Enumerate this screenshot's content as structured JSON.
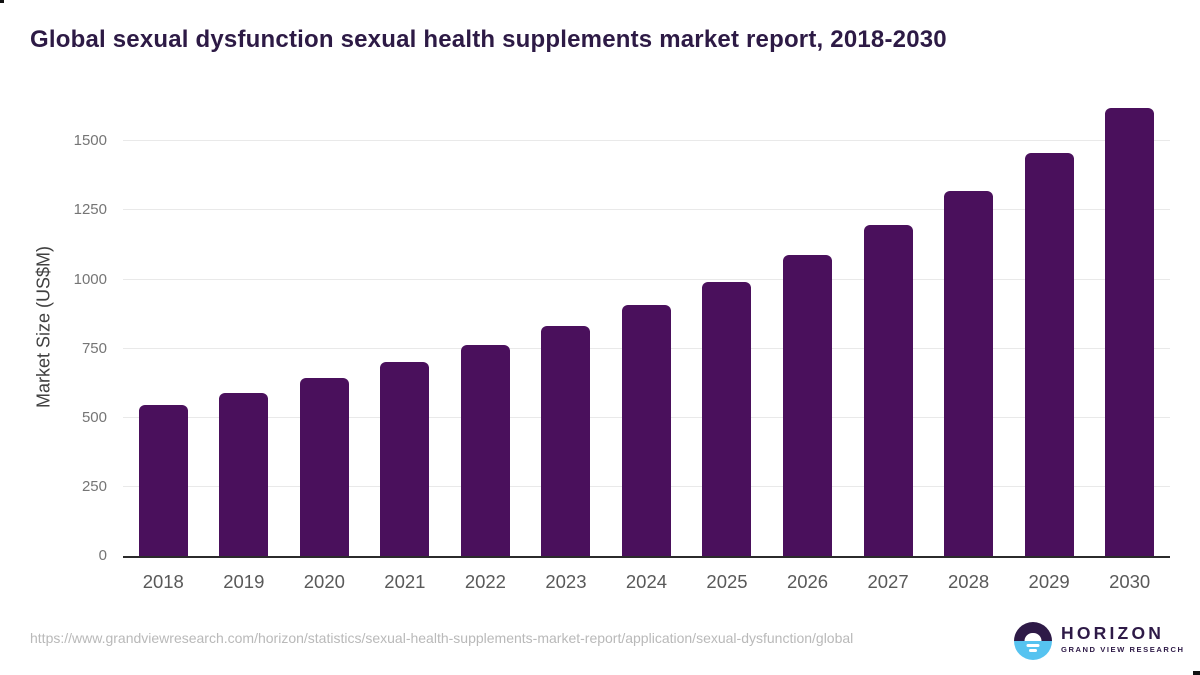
{
  "page": {
    "title": "Global sexual dysfunction sexual health supplements market report, 2018-2030"
  },
  "chart_data": {
    "type": "bar",
    "title": "Global sexual dysfunction sexual health supplements market report, 2018-2030",
    "categories": [
      "2018",
      "2019",
      "2020",
      "2021",
      "2022",
      "2023",
      "2024",
      "2025",
      "2026",
      "2027",
      "2028",
      "2029",
      "2030"
    ],
    "values": [
      546,
      589,
      643,
      701,
      762,
      833,
      908,
      991,
      1090,
      1199,
      1320,
      1459,
      1620
    ],
    "xlabel": "",
    "ylabel": "Market Size (US$M)",
    "ylim": [
      0,
      1675
    ],
    "yticks": [
      0,
      250,
      500,
      750,
      1000,
      1250,
      1500
    ],
    "grid": true,
    "legend_position": "none"
  },
  "footer": {
    "source_url": "https://www.grandviewresearch.com/horizon/statistics/sexual-health-supplements-market-report/application/sexual-dysfunction/global",
    "logo_brand": "HORIZON",
    "logo_tagline": "GRAND VIEW RESEARCH"
  },
  "colors": {
    "bar": "#4a105c",
    "title": "#2d1a45",
    "axis_line": "#2b2b2b",
    "gridline": "#e9e9e9",
    "y_tick_label": "#757575",
    "x_tick_label": "#595959",
    "url_text": "#b9b9b9",
    "logo_purple": "#2e1a47",
    "logo_blue": "#56c3f0"
  }
}
